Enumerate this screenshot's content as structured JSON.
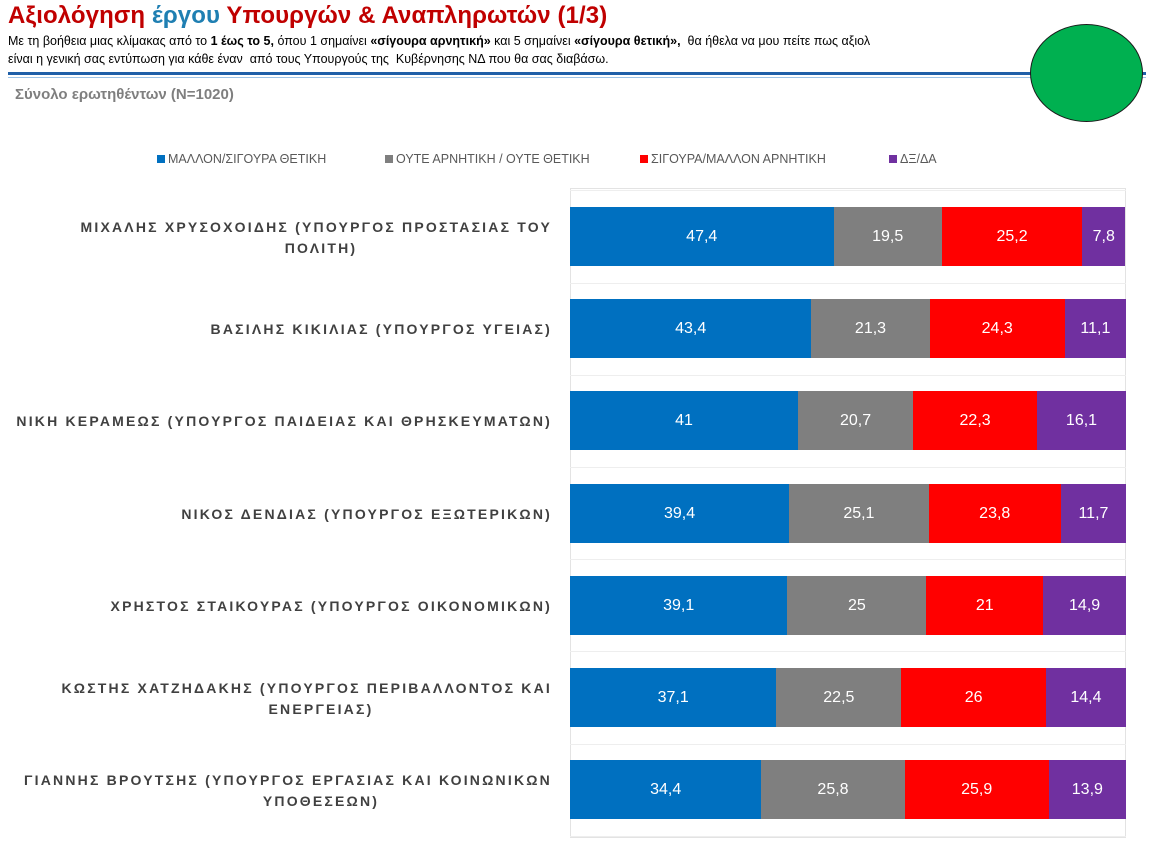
{
  "header": {
    "title_part1": "Αξιολόγηση ",
    "title_part2": "έργου",
    "title_part3": " Υπουργών & Αναπληρωτών (1/3)",
    "subtitle_line1_a": "Με τη βοήθεια μιας κλίμακας από το ",
    "subtitle_line1_b": "1 έως το 5,",
    "subtitle_line1_c": " όπου 1 σημαίνει ",
    "subtitle_line1_d": "«σίγουρα αρνητική»",
    "subtitle_line1_e": " και 5 σημαίνει ",
    "subtitle_line1_f": "«σίγουρα θετική»,",
    "subtitle_line1_g": "  θα ήθελα να μου πείτε πως αξιολ",
    "subtitle_line2": "είναι η γενική σας εντύπωση για κάθε έναν  από τους Υπουργούς της  Κυβέρνησης ΝΔ που θα σας διαβάσω.",
    "sample_label": "Σύνολο ερωτηθέντων (Ν=1020)"
  },
  "colors": {
    "positive": "#0070c0",
    "neutral": "#7f7f7f",
    "negative": "#ff0000",
    "dk_na": "#7030a0",
    "title_red": "#c00000",
    "title_blue": "#1f7fb2",
    "badge_green": "#00b050"
  },
  "chart_data": {
    "type": "bar",
    "orientation": "horizontal",
    "stacked": true,
    "xlim": [
      0,
      100
    ],
    "legend_position": "top",
    "categories": [
      "ΜΙΧΑΛΗΣ ΧΡΥΣΟΧΟΙΔΗΣ (ΥΠΟΥΡΓΟΣ ΠΡΟΣΤΑΣΙΑΣ ΤΟΥ ΠΟΛΙΤΗ)",
      "ΒΑΣΙΛΗΣ ΚΙΚΙΛΙΑΣ (ΥΠΟΥΡΓΟΣ ΥΓΕΙΑΣ)",
      "ΝΙΚΗ ΚΕΡΑΜΕΩΣ (ΥΠΟΥΡΓΟΣ ΠΑΙΔΕΙΑΣ ΚΑΙ ΘΡΗΣΚΕΥΜΑΤΩΝ)",
      "ΝΙΚΟΣ ΔΕΝΔΙΑΣ (ΥΠΟΥΡΓΟΣ ΕΞΩΤΕΡΙΚΩΝ)",
      "ΧΡΗΣΤΟΣ ΣΤΑΙΚΟΥΡΑΣ (ΥΠΟΥΡΓΟΣ ΟΙΚΟΝΟΜΙΚΩΝ)",
      "ΚΩΣΤΗΣ ΧΑΤΖΗΔΑΚΗΣ (ΥΠΟΥΡΓΟΣ ΠΕΡΙΒΑΛΛΟΝΤΟΣ ΚΑΙ ΕΝΕΡΓΕΙΑΣ)",
      "ΓΙΑΝΝΗΣ ΒΡΟΥΤΣΗΣ (ΥΠΟΥΡΓΟΣ ΕΡΓΑΣΙΑΣ ΚΑΙ ΚΟΙΝΩΝΙΚΩΝ ΥΠΟΘΕΣΕΩΝ)"
    ],
    "category_lines": [
      [
        "ΜΙΧΑΛΗΣ ΧΡΥΣΟΧΟΙΔΗΣ (ΥΠΟΥΡΓΟΣ ΠΡΟΣΤΑΣΙΑΣ ΤΟΥ",
        "ΠΟΛΙΤΗ)"
      ],
      [
        "ΒΑΣΙΛΗΣ ΚΙΚΙΛΙΑΣ (ΥΠΟΥΡΓΟΣ ΥΓΕΙΑΣ)"
      ],
      [
        "ΝΙΚΗ ΚΕΡΑΜΕΩΣ (ΥΠΟΥΡΓΟΣ ΠΑΙΔΕΙΑΣ ΚΑΙ ΘΡΗΣΚΕΥΜΑΤΩΝ)"
      ],
      [
        "ΝΙΚΟΣ ΔΕΝΔΙΑΣ (ΥΠΟΥΡΓΟΣ ΕΞΩΤΕΡΙΚΩΝ)"
      ],
      [
        "ΧΡΗΣΤΟΣ ΣΤΑΙΚΟΥΡΑΣ (ΥΠΟΥΡΓΟΣ ΟΙΚΟΝΟΜΙΚΩΝ)"
      ],
      [
        "ΚΩΣΤΗΣ ΧΑΤΖΗΔΑΚΗΣ (ΥΠΟΥΡΓΟΣ ΠΕΡΙΒΑΛΛΟΝΤΟΣ ΚΑΙ",
        "ΕΝΕΡΓΕΙΑΣ)"
      ],
      [
        "ΓΙΑΝΝΗΣ ΒΡΟΥΤΣΗΣ (ΥΠΟΥΡΓΟΣ ΕΡΓΑΣΙΑΣ ΚΑΙ ΚΟΙΝΩΝΙΚΩΝ",
        "ΥΠΟΘΕΣΕΩΝ)"
      ]
    ],
    "series": [
      {
        "name": "ΜΑΛΛΟΝ/ΣΙΓΟΥΡΑ ΘΕΤΙΚΗ",
        "color": "#0070c0",
        "values": [
          47.4,
          43.4,
          41,
          39.4,
          39.1,
          37.1,
          34.4
        ],
        "labels": [
          "47,4",
          "43,4",
          "41",
          "39,4",
          "39,1",
          "37,1",
          "34,4"
        ]
      },
      {
        "name": "ΟΥΤΕ ΑΡΝΗΤΙΚΗ / ΟΥΤΕ ΘΕΤΙΚΗ",
        "color": "#7f7f7f",
        "values": [
          19.5,
          21.3,
          20.7,
          25.1,
          25,
          22.5,
          25.8
        ],
        "labels": [
          "19,5",
          "21,3",
          "20,7",
          "25,1",
          "25",
          "22,5",
          "25,8"
        ]
      },
      {
        "name": "ΣΙΓΟΥΡΑ/ΜΑΛΛΟΝ ΑΡΝΗΤΙΚΗ",
        "color": "#ff0000",
        "values": [
          25.2,
          24.3,
          22.3,
          23.8,
          21,
          26,
          25.9
        ],
        "labels": [
          "25,2",
          "24,3",
          "22,3",
          "23,8",
          "21",
          "26",
          "25,9"
        ]
      },
      {
        "name": "ΔΞ/ΔΑ",
        "color": "#7030a0",
        "values": [
          7.8,
          11.1,
          16.1,
          11.7,
          14.9,
          14.4,
          13.9
        ],
        "labels": [
          "7,8",
          "11,1",
          "16,1",
          "11,7",
          "14,9",
          "14,4",
          "13,9"
        ]
      }
    ]
  }
}
